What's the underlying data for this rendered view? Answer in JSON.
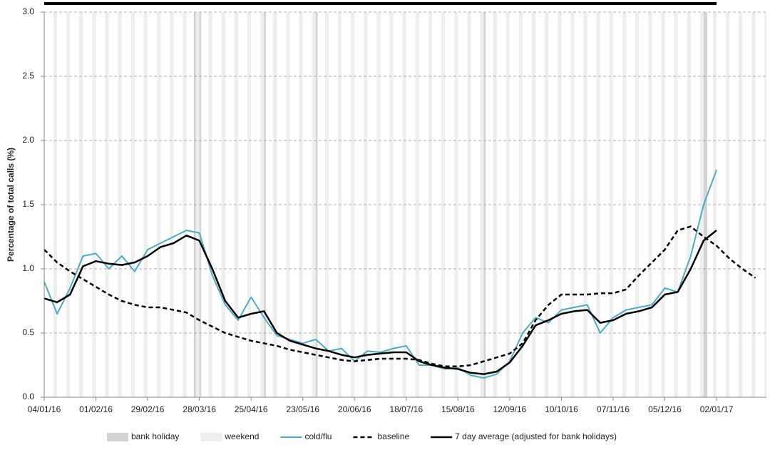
{
  "chart_data": {
    "type": "line",
    "y_label": "Percentage of total calls (%)",
    "xlim": [
      "04/01/16",
      "29/01/17"
    ],
    "xticks": [
      "04/01/16",
      "01/02/16",
      "29/02/16",
      "28/03/16",
      "25/04/16",
      "23/05/16",
      "20/06/16",
      "18/07/16",
      "15/08/16",
      "12/09/16",
      "10/10/16",
      "07/11/16",
      "05/12/16",
      "02/01/17"
    ],
    "ylim": [
      0,
      3
    ],
    "yticks": [
      {
        "value": 0,
        "label": "0.0"
      },
      0.5,
      {
        "value": 1,
        "label": "1.0"
      },
      1.5,
      {
        "value": 2,
        "label": "2.0"
      },
      2.5,
      {
        "value": 3,
        "label": "3.0"
      }
    ],
    "grid": true,
    "shading": [
      {
        "name": "bank holiday",
        "color": "#d3d3d3",
        "dates": [
          "25/03/16",
          "28/03/16",
          "02/05/16",
          "30/05/16",
          "29/08/16",
          "26/12/16",
          "27/12/16"
        ]
      },
      {
        "name": "weekend",
        "color": "#eeeeee"
      }
    ],
    "series": [
      {
        "name": "cold/flu",
        "color": "#4bacc6",
        "style": "solid",
        "width": 2,
        "x": [
          "04/01/16",
          "11/01/16",
          "18/01/16",
          "25/01/16",
          "01/02/16",
          "08/02/16",
          "15/02/16",
          "22/02/16",
          "29/02/16",
          "07/03/16",
          "14/03/16",
          "21/03/16",
          "28/03/16",
          "04/04/16",
          "11/04/16",
          "18/04/16",
          "25/04/16",
          "02/05/16",
          "09/05/16",
          "16/05/16",
          "23/05/16",
          "30/05/16",
          "06/06/16",
          "13/06/16",
          "20/06/16",
          "27/06/16",
          "04/07/16",
          "11/07/16",
          "18/07/16",
          "25/07/16",
          "01/08/16",
          "08/08/16",
          "15/08/16",
          "22/08/16",
          "29/08/16",
          "05/09/16",
          "12/09/16",
          "19/09/16",
          "26/09/16",
          "03/10/16",
          "10/10/16",
          "17/10/16",
          "24/10/16",
          "31/10/16",
          "07/11/16",
          "14/11/16",
          "21/11/16",
          "28/11/16",
          "05/12/16",
          "12/12/16",
          "19/12/16",
          "26/12/16",
          "02/01/17"
        ],
        "values": [
          0.9,
          0.65,
          0.85,
          1.1,
          1.12,
          1.0,
          1.1,
          0.98,
          1.15,
          1.2,
          1.25,
          1.3,
          1.28,
          0.95,
          0.72,
          0.6,
          0.78,
          0.62,
          0.48,
          0.45,
          0.42,
          0.45,
          0.36,
          0.38,
          0.28,
          0.36,
          0.35,
          0.38,
          0.4,
          0.25,
          0.25,
          0.22,
          0.23,
          0.17,
          0.15,
          0.18,
          0.28,
          0.5,
          0.62,
          0.58,
          0.68,
          0.7,
          0.72,
          0.5,
          0.62,
          0.68,
          0.7,
          0.72,
          0.85,
          0.82,
          1.1,
          1.5,
          1.77
        ]
      },
      {
        "name": "baseline",
        "color": "#000000",
        "style": "dashed",
        "width": 2.5,
        "x": [
          "04/01/16",
          "11/01/16",
          "18/01/16",
          "25/01/16",
          "01/02/16",
          "08/02/16",
          "15/02/16",
          "22/02/16",
          "29/02/16",
          "07/03/16",
          "14/03/16",
          "21/03/16",
          "28/03/16",
          "04/04/16",
          "11/04/16",
          "18/04/16",
          "25/04/16",
          "02/05/16",
          "09/05/16",
          "16/05/16",
          "23/05/16",
          "30/05/16",
          "06/06/16",
          "13/06/16",
          "20/06/16",
          "27/06/16",
          "04/07/16",
          "11/07/16",
          "18/07/16",
          "25/07/16",
          "01/08/16",
          "08/08/16",
          "15/08/16",
          "22/08/16",
          "29/08/16",
          "05/09/16",
          "12/09/16",
          "19/09/16",
          "26/09/16",
          "03/10/16",
          "10/10/16",
          "17/10/16",
          "24/10/16",
          "31/10/16",
          "07/11/16",
          "14/11/16",
          "21/11/16",
          "28/11/16",
          "05/12/16",
          "12/12/16",
          "19/12/16",
          "26/12/16",
          "02/01/17",
          "09/01/17",
          "16/01/17",
          "23/01/17"
        ],
        "values": [
          1.15,
          1.05,
          0.98,
          0.92,
          0.86,
          0.8,
          0.75,
          0.72,
          0.7,
          0.7,
          0.68,
          0.66,
          0.6,
          0.55,
          0.5,
          0.47,
          0.44,
          0.42,
          0.4,
          0.37,
          0.35,
          0.33,
          0.31,
          0.29,
          0.28,
          0.29,
          0.3,
          0.3,
          0.3,
          0.29,
          0.26,
          0.24,
          0.24,
          0.25,
          0.28,
          0.31,
          0.34,
          0.42,
          0.6,
          0.72,
          0.8,
          0.8,
          0.8,
          0.81,
          0.81,
          0.84,
          0.95,
          1.05,
          1.15,
          1.3,
          1.33,
          1.25,
          1.18,
          1.08,
          1.0,
          0.93
        ]
      },
      {
        "name": "7 day average (adjusted for bank holidays)",
        "color": "#000000",
        "style": "solid",
        "width": 2.5,
        "x": [
          "04/01/16",
          "11/01/16",
          "18/01/16",
          "25/01/16",
          "01/02/16",
          "08/02/16",
          "15/02/16",
          "22/02/16",
          "29/02/16",
          "07/03/16",
          "14/03/16",
          "21/03/16",
          "28/03/16",
          "04/04/16",
          "11/04/16",
          "18/04/16",
          "25/04/16",
          "02/05/16",
          "09/05/16",
          "16/05/16",
          "23/05/16",
          "30/05/16",
          "06/06/16",
          "13/06/16",
          "20/06/16",
          "27/06/16",
          "04/07/16",
          "11/07/16",
          "18/07/16",
          "25/07/16",
          "01/08/16",
          "08/08/16",
          "15/08/16",
          "22/08/16",
          "29/08/16",
          "05/09/16",
          "12/09/16",
          "19/09/16",
          "26/09/16",
          "03/10/16",
          "10/10/16",
          "17/10/16",
          "24/10/16",
          "31/10/16",
          "07/11/16",
          "14/11/16",
          "21/11/16",
          "28/11/16",
          "05/12/16",
          "12/12/16",
          "19/12/16",
          "26/12/16",
          "02/01/17"
        ],
        "values": [
          0.77,
          0.74,
          0.8,
          1.02,
          1.06,
          1.04,
          1.03,
          1.05,
          1.1,
          1.17,
          1.2,
          1.26,
          1.22,
          1.0,
          0.75,
          0.62,
          0.65,
          0.67,
          0.5,
          0.44,
          0.41,
          0.38,
          0.36,
          0.33,
          0.31,
          0.33,
          0.34,
          0.35,
          0.35,
          0.28,
          0.25,
          0.23,
          0.22,
          0.19,
          0.18,
          0.2,
          0.27,
          0.4,
          0.56,
          0.6,
          0.65,
          0.67,
          0.68,
          0.58,
          0.6,
          0.65,
          0.67,
          0.7,
          0.8,
          0.82,
          1.0,
          1.22,
          1.3
        ]
      }
    ]
  }
}
